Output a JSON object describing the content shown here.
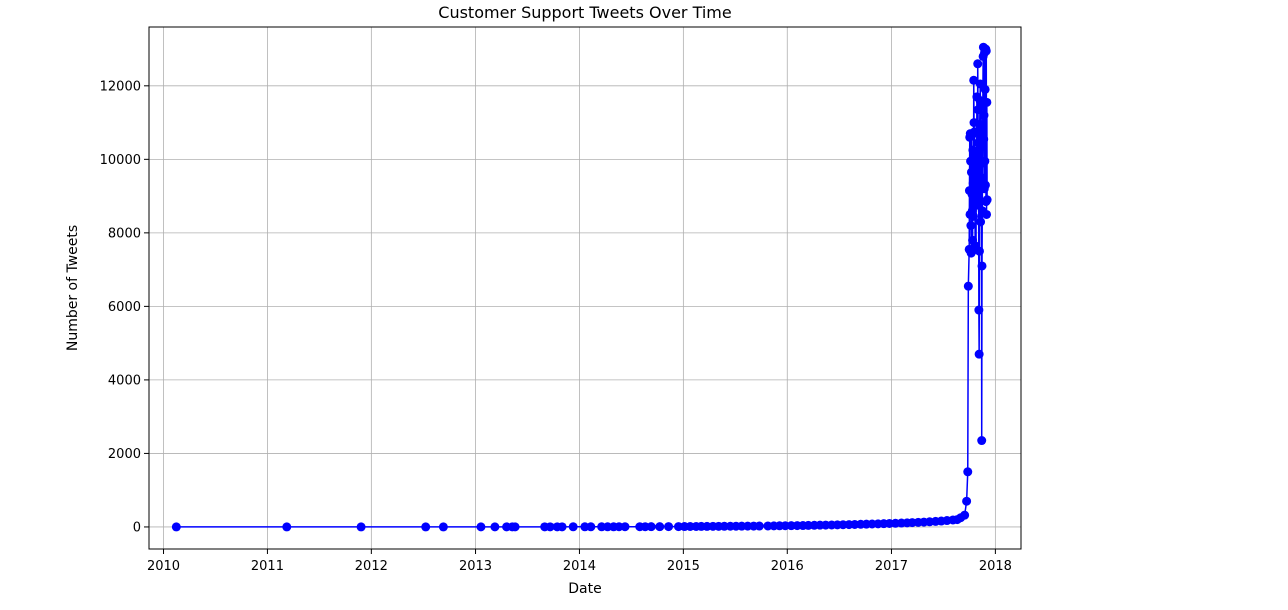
{
  "chart_data": {
    "type": "line",
    "title": "Customer Support Tweets Over Time",
    "xlabel": "Date",
    "ylabel": "Number of Tweets",
    "x_ticks": [
      "2010",
      "2011",
      "2012",
      "2013",
      "2014",
      "2015",
      "2016",
      "2017",
      "2018"
    ],
    "y_ticks": [
      "0",
      "2000",
      "4000",
      "6000",
      "8000",
      "10000",
      "12000"
    ],
    "xlim": [
      "2009-11-11",
      "2018-04-01"
    ],
    "ylim": [
      -600,
      13600
    ],
    "grid": true,
    "style": {
      "line_color": "#0000ff",
      "marker": "circle"
    },
    "series": [
      {
        "x": [
          "2010-02-15",
          "2011-03-10",
          "2011-11-26",
          "2012-07-10",
          "2012-09-10",
          "2013-01-20",
          "2013-03-10",
          "2013-04-20",
          "2013-05-10",
          "2013-05-20",
          "2013-09-01",
          "2013-09-20",
          "2013-10-15",
          "2013-11-01",
          "2013-12-10",
          "2014-01-20",
          "2014-02-10",
          "2014-03-20",
          "2014-04-10",
          "2014-05-01",
          "2014-05-20",
          "2014-06-10",
          "2014-08-01",
          "2014-08-20",
          "2014-09-10",
          "2014-10-10",
          "2014-11-10",
          "2014-12-15",
          "2015-01-05",
          "2015-01-25",
          "2015-02-15",
          "2015-03-05",
          "2015-03-25",
          "2015-04-15",
          "2015-05-05",
          "2015-05-25",
          "2015-06-15",
          "2015-07-05",
          "2015-07-25",
          "2015-08-15",
          "2015-09-05",
          "2015-09-25",
          "2015-10-25",
          "2015-11-15",
          "2015-12-05",
          "2015-12-25",
          "2016-01-15",
          "2016-02-05",
          "2016-02-25",
          "2016-03-15",
          "2016-04-05",
          "2016-04-25",
          "2016-05-15",
          "2016-06-05",
          "2016-06-25",
          "2016-07-15",
          "2016-08-05",
          "2016-08-25",
          "2016-09-15",
          "2016-10-05",
          "2016-10-25",
          "2016-11-15",
          "2016-12-05",
          "2016-12-25",
          "2017-01-15",
          "2017-02-05",
          "2017-02-25",
          "2017-03-15",
          "2017-04-05",
          "2017-04-25",
          "2017-05-15",
          "2017-06-05",
          "2017-06-25",
          "2017-07-15",
          "2017-08-05",
          "2017-08-20",
          "2017-09-01",
          "2017-09-15",
          "2017-09-22",
          "2017-09-26",
          "2017-09-28",
          "2017-10-01",
          "2017-10-02",
          "2017-10-03",
          "2017-10-04",
          "2017-10-05",
          "2017-10-06",
          "2017-10-07",
          "2017-10-08",
          "2017-10-09",
          "2017-10-10",
          "2017-10-11",
          "2017-10-12",
          "2017-10-13",
          "2017-10-14",
          "2017-10-15",
          "2017-10-16",
          "2017-10-17",
          "2017-10-18",
          "2017-10-19",
          "2017-10-20",
          "2017-10-21",
          "2017-10-22",
          "2017-10-23",
          "2017-10-24",
          "2017-10-25",
          "2017-10-26",
          "2017-10-27",
          "2017-10-28",
          "2017-10-29",
          "2017-10-30",
          "2017-10-31",
          "2017-11-01",
          "2017-11-02",
          "2017-11-03",
          "2017-11-04",
          "2017-11-05",
          "2017-11-06",
          "2017-11-07",
          "2017-11-08",
          "2017-11-09",
          "2017-11-10",
          "2017-11-11",
          "2017-11-12",
          "2017-11-13",
          "2017-11-14",
          "2017-11-15",
          "2017-11-16",
          "2017-11-17",
          "2017-11-18",
          "2017-11-19",
          "2017-11-20",
          "2017-11-21",
          "2017-11-22",
          "2017-11-23",
          "2017-11-24",
          "2017-11-25",
          "2017-11-26",
          "2017-11-27",
          "2017-11-28",
          "2017-11-29",
          "2017-11-30",
          "2017-12-01",
          "2017-12-02",
          "2017-12-03"
        ],
        "y": [
          1,
          1,
          1,
          1,
          1,
          2,
          2,
          2,
          2,
          2,
          3,
          3,
          3,
          3,
          4,
          4,
          4,
          5,
          5,
          5,
          6,
          6,
          7,
          7,
          8,
          8,
          9,
          10,
          11,
          12,
          13,
          14,
          15,
          16,
          17,
          18,
          19,
          20,
          21,
          22,
          23,
          25,
          27,
          29,
          31,
          33,
          35,
          37,
          39,
          42,
          45,
          48,
          51,
          54,
          57,
          60,
          64,
          68,
          72,
          76,
          80,
          85,
          90,
          95,
          100,
          106,
          112,
          118,
          125,
          132,
          140,
          150,
          160,
          175,
          190,
          200,
          250,
          320,
          700,
          1500,
          6550,
          7550,
          9150,
          10600,
          8500,
          10700,
          9950,
          8200,
          7450,
          9650,
          10650,
          9050,
          8600,
          7800,
          10250,
          9350,
          8450,
          12150,
          11000,
          9750,
          10750,
          8950,
          7650,
          10150,
          9500,
          7550,
          9850,
          8750,
          11700,
          10050,
          9150,
          12600,
          11350,
          10450,
          9650,
          5900,
          4700,
          7500,
          10950,
          11600,
          12050,
          8300,
          10850,
          11450,
          9500,
          2350,
          7100,
          8600,
          9900,
          11550,
          12800,
          13050,
          10550,
          11200,
          9200,
          12900,
          9950,
          11900,
          9300,
          13000,
          8850,
          12950,
          8500,
          11550,
          8900
        ]
      }
    ]
  }
}
